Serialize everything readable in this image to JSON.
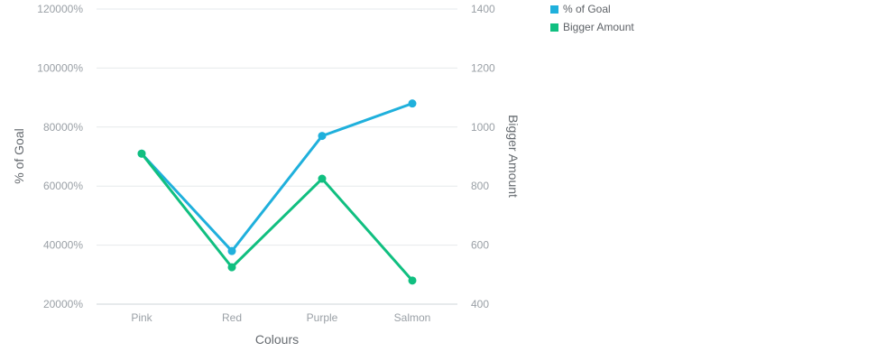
{
  "chart_data": {
    "type": "line",
    "categories": [
      "Pink",
      "Red",
      "Purple",
      "Salmon"
    ],
    "xlabel": "Colours",
    "y_left": {
      "label": "% of Goal",
      "ticks": [
        "20000%",
        "40000%",
        "60000%",
        "80000%",
        "100000%",
        "120000%"
      ],
      "ylim": [
        20000,
        120000
      ]
    },
    "y_right": {
      "label": "Bigger Amount",
      "ticks": [
        "400",
        "600",
        "800",
        "1000",
        "1200",
        "1400"
      ],
      "ylim": [
        400,
        1400
      ]
    },
    "grid": true,
    "legend_position": "top-right",
    "series": [
      {
        "name": "% of Goal",
        "axis": "left",
        "color": "#1fb0dc",
        "values": [
          71000,
          38000,
          77000,
          88000
        ]
      },
      {
        "name": "Bigger Amount",
        "axis": "right",
        "color": "#10bf80",
        "values": [
          910,
          525,
          825,
          480
        ]
      }
    ]
  }
}
